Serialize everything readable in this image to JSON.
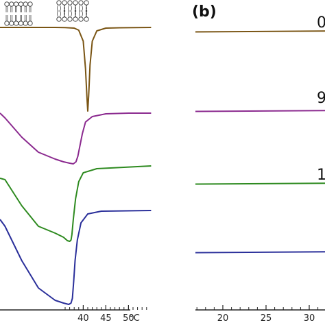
{
  "chart_data": [
    {
      "type": "line",
      "panel": "a",
      "xunit": "°C",
      "xlim": [
        -3,
        55
      ],
      "xticks": [
        40,
        45,
        50
      ],
      "x_unit_label": "°C",
      "series": [
        {
          "color": "#7a5514",
          "x": [
            -3,
            0,
            10,
            20,
            30,
            36,
            38,
            39,
            40,
            40.5,
            40.8,
            41.0,
            41.2,
            41.5,
            42,
            43,
            45,
            48,
            55
          ],
          "y": [
            40,
            40,
            40,
            40,
            40,
            40.2,
            41,
            44,
            60,
            100,
            140,
            162,
            140,
            95,
            60,
            45,
            41,
            40.5,
            40
          ]
        },
        {
          "color": "#8b2a8f",
          "x": [
            -3,
            0,
            10,
            20,
            30,
            35,
            37,
            37.8,
            38.4,
            38.8,
            39.2,
            39.8,
            40.5,
            42,
            45,
            50,
            55
          ],
          "y": [
            165,
            172,
            200,
            222,
            232,
            236,
            238,
            239,
            236,
            228,
            215,
            195,
            178,
            170,
            166,
            165,
            165
          ]
        },
        {
          "color": "#2d8a1f",
          "x": [
            -3,
            0,
            10,
            20,
            30,
            35,
            36.5,
            37,
            37.3,
            37.5,
            37.8,
            38.3,
            39,
            40,
            43,
            55
          ],
          "y": [
            260,
            262,
            300,
            330,
            340,
            346,
            351,
            352,
            350,
            342,
            320,
            290,
            265,
            252,
            246,
            242
          ]
        },
        {
          "color": "#2a2f9a",
          "x": [
            -3,
            0,
            10,
            20,
            30,
            35,
            36.8,
            37.3,
            37.6,
            37.9,
            38.2,
            38.7,
            39.5,
            41,
            44,
            55
          ],
          "y": [
            320,
            330,
            380,
            420,
            438,
            442,
            444,
            442,
            435,
            410,
            380,
            350,
            325,
            312,
            308,
            307
          ]
        }
      ]
    },
    {
      "type": "line",
      "panel": "b",
      "xticks": [
        20,
        25,
        30
      ],
      "series": [
        {
          "color": "#7a5514",
          "x": [
            12,
            35
          ],
          "y": [
            0.0,
            0.0
          ],
          "label": "0"
        },
        {
          "color": "#8b2a8f",
          "x": [
            12,
            35
          ],
          "y": [
            0.0,
            0.0
          ],
          "label": "9"
        },
        {
          "color": "#2d8a1f",
          "x": [
            12,
            35
          ],
          "y": [
            0.0,
            0.0
          ],
          "label": "1"
        },
        {
          "color": "#2a2f9a",
          "x": [
            12,
            35
          ],
          "y": [
            0.0,
            0.0
          ],
          "label": ""
        }
      ]
    }
  ],
  "panel_b_label": "(b)",
  "panel_b_cut_labels": [
    "0",
    "9",
    "1"
  ]
}
